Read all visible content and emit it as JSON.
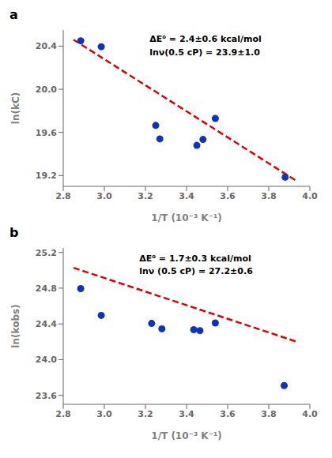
{
  "chart_data": [
    {
      "type": "scatter",
      "title": "a",
      "x_label": "1/T (10⁻³ K⁻¹)",
      "y_label": "ln(kC)",
      "xlim": [
        2.8,
        4.0
      ],
      "ylim": [
        19.1,
        20.55
      ],
      "xticks": [
        2.8,
        {
          "value": 3.0,
          "label": "3.0"
        },
        3.2,
        3.4,
        3.6,
        3.8,
        {
          "value": 4.0,
          "label": "4.0"
        }
      ],
      "yticks": [
        19.2,
        19.6,
        {
          "value": 20.0,
          "label": "20.0"
        },
        20.4
      ],
      "grid": false,
      "series": [
        {
          "type": "scatter",
          "color": "#1133bb",
          "x": [
            2.885,
            2.985,
            3.25,
            3.27,
            3.45,
            3.48,
            3.54,
            3.88
          ],
          "values": [
            20.45,
            20.395,
            19.665,
            19.54,
            19.48,
            19.535,
            19.73,
            19.185
          ]
        },
        {
          "type": "line",
          "color": "#dd0000",
          "line_style": "dashed",
          "x": [
            2.85,
            3.93
          ],
          "values": [
            20.46005,
            19.15649
          ]
        }
      ],
      "annotations": [
        {
          "lines": [
            "ΔE⁰ = 2.4±0.6 kcal/mol",
            "lnν(0.5 cP) = 23.9±1.0"
          ],
          "x": 3.22,
          "y": 20.52
        }
      ]
    },
    {
      "type": "scatter",
      "title": "b",
      "x_label": "1/T (10⁻³ K⁻¹)",
      "y_label": "ln(kobs)",
      "xlim": [
        2.8,
        4.0
      ],
      "ylim": [
        23.5,
        25.25
      ],
      "xticks": [
        2.8,
        {
          "value": 3.0,
          "label": "3.0"
        },
        3.2,
        3.4,
        3.6,
        3.8,
        {
          "value": 4.0,
          "label": "4.0"
        }
      ],
      "yticks": [
        23.6,
        {
          "value": 24.0,
          "label": "24.0"
        },
        24.4,
        24.8,
        25.2
      ],
      "grid": false,
      "series": [
        {
          "type": "scatter",
          "color": "#1133bb",
          "x": [
            2.885,
            2.985,
            3.23,
            3.28,
            3.435,
            3.465,
            3.54,
            3.875
          ],
          "values": [
            24.795,
            24.495,
            24.405,
            24.345,
            24.335,
            24.325,
            24.41,
            23.71
          ]
        },
        {
          "type": "line",
          "color": "#dd0000",
          "line_style": "dashed",
          "x": [
            2.85,
            3.93
          ],
          "values": [
            25.0283,
            24.20534
          ]
        }
      ],
      "annotations": [
        {
          "lines": [
            "ΔE⁰ = 1.7±0.3 kcal/mol",
            "lnν (0.5 cP) = 27.2±0.6"
          ],
          "x": 3.17,
          "y": 25.2
        }
      ]
    }
  ]
}
